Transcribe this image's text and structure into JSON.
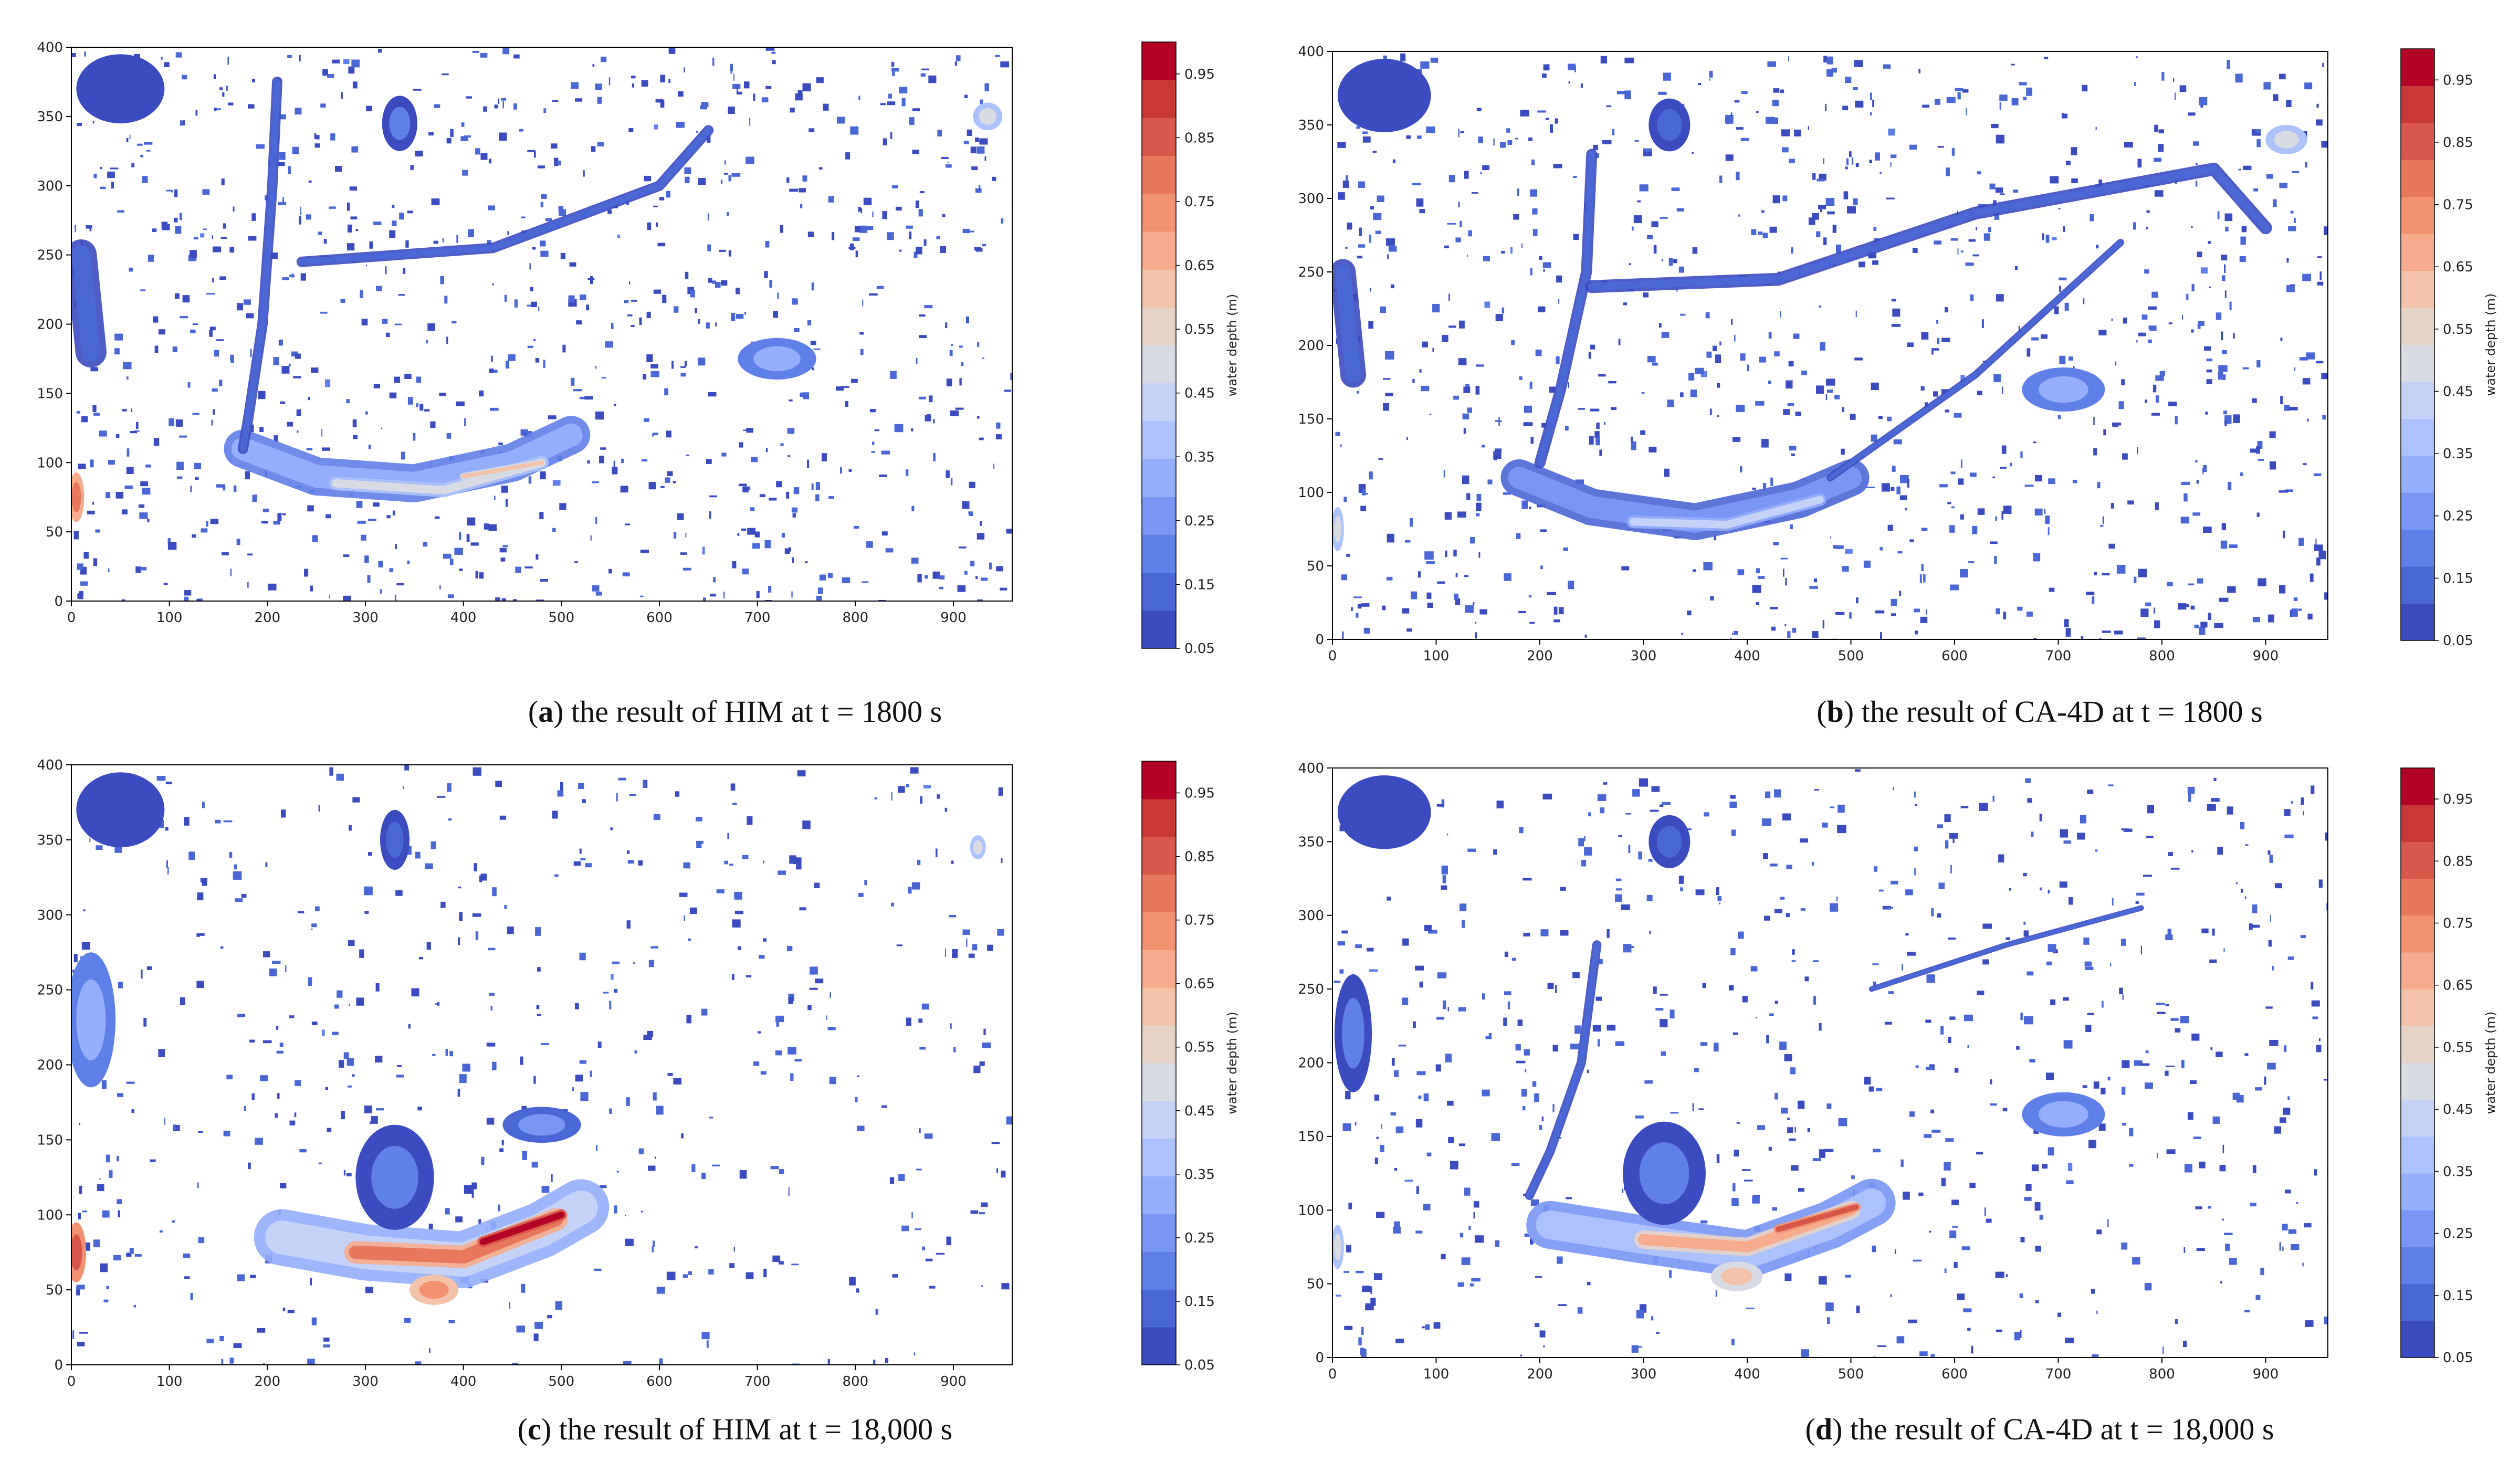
{
  "colorbar_label": "water depth (m)",
  "colorbar_ticks": [
    "0.05",
    "0.15",
    "0.25",
    "0.35",
    "0.45",
    "0.55",
    "0.65",
    "0.75",
    "0.85",
    "0.95"
  ],
  "colormap": [
    "#3b4cc0",
    "#4a67d6",
    "#5f80e8",
    "#7897f4",
    "#93aefb",
    "#acc2fd",
    "#c4d2f7",
    "#d8dbe4",
    "#e7d3c6",
    "#f2c3a9",
    "#f6ac8c",
    "#f29273",
    "#e8775e",
    "#d9574a",
    "#c73837",
    "#b40426"
  ],
  "captions": [
    {
      "letter": "a",
      "text": "the result of HIM at t = 1800 s"
    },
    {
      "letter": "b",
      "text": "the result of CA-4D at t = 1800 s"
    },
    {
      "letter": "c",
      "text": "the result of HIM at t = 18,000 s"
    },
    {
      "letter": "d",
      "text": "the result of CA-4D at t = 18,000 s"
    }
  ],
  "chart_data": [
    {
      "type": "heatmap",
      "panel": "a",
      "x_ticks": [
        0,
        100,
        200,
        300,
        400,
        500,
        600,
        700,
        800,
        900
      ],
      "y_ticks": [
        0,
        50,
        100,
        150,
        200,
        250,
        300,
        350,
        400
      ],
      "xlim": [
        0,
        960
      ],
      "ylim": [
        0,
        400
      ],
      "clim": [
        0.05,
        1.0
      ],
      "features": [
        {
          "kind": "band",
          "pts": [
            [
              175,
              110
            ],
            [
              250,
              90
            ],
            [
              350,
              85
            ],
            [
              450,
              100
            ],
            [
              510,
              120
            ]
          ],
          "w": 22,
          "v": 0.3
        },
        {
          "kind": "band",
          "pts": [
            [
              270,
              85
            ],
            [
              380,
              80
            ],
            [
              480,
              100
            ]
          ],
          "w": 8,
          "v": 0.5
        },
        {
          "kind": "band",
          "pts": [
            [
              400,
              90
            ],
            [
              480,
              100
            ]
          ],
          "w": 4,
          "v": 0.6
        },
        {
          "kind": "band",
          "pts": [
            [
              210,
              375
            ],
            [
              205,
              300
            ],
            [
              195,
              200
            ],
            [
              180,
              130
            ],
            [
              175,
              110
            ]
          ],
          "w": 6,
          "v": 0.15
        },
        {
          "kind": "band",
          "pts": [
            [
              235,
              245
            ],
            [
              430,
              255
            ],
            [
              600,
              300
            ],
            [
              650,
              340
            ]
          ],
          "w": 6,
          "v": 0.15
        },
        {
          "kind": "blob",
          "c": [
            720,
            175
          ],
          "r": [
            40,
            15
          ],
          "v": 0.3
        },
        {
          "kind": "blob",
          "c": [
            5,
            75
          ],
          "r": [
            8,
            18
          ],
          "v": 0.8
        },
        {
          "kind": "blob",
          "c": [
            935,
            350
          ],
          "r": [
            15,
            10
          ],
          "v": 0.5
        },
        {
          "kind": "blob",
          "c": [
            50,
            370
          ],
          "r": [
            45,
            25
          ],
          "v": 0.1
        },
        {
          "kind": "blob",
          "c": [
            335,
            345
          ],
          "r": [
            18,
            20
          ],
          "v": 0.2
        },
        {
          "kind": "band",
          "pts": [
            [
              10,
              250
            ],
            [
              20,
              180
            ]
          ],
          "w": 18,
          "v": 0.15
        }
      ],
      "speckle_density": 1.0
    },
    {
      "type": "heatmap",
      "panel": "b",
      "x_ticks": [
        0,
        100,
        200,
        300,
        400,
        500,
        600,
        700,
        800,
        900
      ],
      "y_ticks": [
        0,
        50,
        100,
        150,
        200,
        250,
        300,
        350,
        400
      ],
      "xlim": [
        0,
        960
      ],
      "ylim": [
        0,
        400
      ],
      "clim": [
        0.05,
        1.0
      ],
      "features": [
        {
          "kind": "band",
          "pts": [
            [
              180,
              110
            ],
            [
              250,
              90
            ],
            [
              350,
              80
            ],
            [
              450,
              95
            ],
            [
              500,
              110
            ]
          ],
          "w": 20,
          "v": 0.25
        },
        {
          "kind": "band",
          "pts": [
            [
              290,
              80
            ],
            [
              380,
              78
            ],
            [
              470,
              95
            ]
          ],
          "w": 7,
          "v": 0.45
        },
        {
          "kind": "band",
          "pts": [
            [
              250,
              330
            ],
            [
              245,
              250
            ],
            [
              220,
              170
            ],
            [
              200,
              120
            ]
          ],
          "w": 6,
          "v": 0.15
        },
        {
          "kind": "band",
          "pts": [
            [
              250,
              240
            ],
            [
              430,
              245
            ],
            [
              620,
              290
            ],
            [
              850,
              320
            ],
            [
              900,
              280
            ]
          ],
          "w": 7,
          "v": 0.15
        },
        {
          "kind": "band",
          "pts": [
            [
              480,
              110
            ],
            [
              620,
              180
            ],
            [
              760,
              270
            ]
          ],
          "w": 4,
          "v": 0.15
        },
        {
          "kind": "blob",
          "c": [
            705,
            170
          ],
          "r": [
            40,
            15
          ],
          "v": 0.3
        },
        {
          "kind": "blob",
          "c": [
            5,
            75
          ],
          "r": [
            6,
            15
          ],
          "v": 0.5
        },
        {
          "kind": "blob",
          "c": [
            920,
            340
          ],
          "r": [
            20,
            10
          ],
          "v": 0.5
        },
        {
          "kind": "blob",
          "c": [
            50,
            370
          ],
          "r": [
            45,
            25
          ],
          "v": 0.1
        },
        {
          "kind": "blob",
          "c": [
            325,
            350
          ],
          "r": [
            20,
            18
          ],
          "v": 0.15
        },
        {
          "kind": "band",
          "pts": [
            [
              10,
              250
            ],
            [
              20,
              180
            ]
          ],
          "w": 14,
          "v": 0.15
        }
      ],
      "speckle_density": 1.0
    },
    {
      "type": "heatmap",
      "panel": "c",
      "x_ticks": [
        0,
        100,
        200,
        300,
        400,
        500,
        600,
        700,
        800,
        900
      ],
      "y_ticks": [
        0,
        50,
        100,
        150,
        200,
        250,
        300,
        350,
        400
      ],
      "xlim": [
        0,
        960
      ],
      "ylim": [
        0,
        400
      ],
      "clim": [
        0.05,
        1.0
      ],
      "features": [
        {
          "kind": "band",
          "pts": [
            [
              215,
              85
            ],
            [
              300,
              75
            ],
            [
              400,
              70
            ],
            [
              480,
              90
            ],
            [
              520,
              105
            ]
          ],
          "w": 30,
          "v": 0.45
        },
        {
          "kind": "band",
          "pts": [
            [
              290,
              75
            ],
            [
              400,
              72
            ],
            [
              495,
              97
            ]
          ],
          "w": 12,
          "v": 0.8
        },
        {
          "kind": "band",
          "pts": [
            [
              420,
              82
            ],
            [
              500,
              100
            ]
          ],
          "w": 6,
          "v": 0.95
        },
        {
          "kind": "blob",
          "c": [
            330,
            125
          ],
          "r": [
            40,
            35
          ],
          "v": 0.2
        },
        {
          "kind": "blob",
          "c": [
            370,
            50
          ],
          "r": [
            25,
            10
          ],
          "v": 0.75
        },
        {
          "kind": "blob",
          "c": [
            5,
            75
          ],
          "r": [
            10,
            20
          ],
          "v": 0.85
        },
        {
          "kind": "blob",
          "c": [
            480,
            160
          ],
          "r": [
            40,
            12
          ],
          "v": 0.25
        },
        {
          "kind": "blob",
          "c": [
            20,
            230
          ],
          "r": [
            25,
            45
          ],
          "v": 0.3
        },
        {
          "kind": "blob",
          "c": [
            50,
            370
          ],
          "r": [
            45,
            25
          ],
          "v": 0.1
        },
        {
          "kind": "blob",
          "c": [
            330,
            350
          ],
          "r": [
            15,
            20
          ],
          "v": 0.15
        },
        {
          "kind": "blob",
          "c": [
            925,
            345
          ],
          "r": [
            8,
            8
          ],
          "v": 0.5
        }
      ],
      "speckle_density": 0.55
    },
    {
      "type": "heatmap",
      "panel": "d",
      "x_ticks": [
        0,
        100,
        200,
        300,
        400,
        500,
        600,
        700,
        800,
        900
      ],
      "y_ticks": [
        0,
        50,
        100,
        150,
        200,
        250,
        300,
        350,
        400
      ],
      "xlim": [
        0,
        960
      ],
      "ylim": [
        0,
        400
      ],
      "clim": [
        0.05,
        1.0
      ],
      "features": [
        {
          "kind": "band",
          "pts": [
            [
              210,
              90
            ],
            [
              300,
              80
            ],
            [
              400,
              70
            ],
            [
              480,
              90
            ],
            [
              520,
              105
            ]
          ],
          "w": 26,
          "v": 0.4
        },
        {
          "kind": "band",
          "pts": [
            [
              300,
              80
            ],
            [
              400,
              75
            ],
            [
              500,
              100
            ]
          ],
          "w": 10,
          "v": 0.7
        },
        {
          "kind": "band",
          "pts": [
            [
              430,
              87
            ],
            [
              505,
              102
            ]
          ],
          "w": 5,
          "v": 0.85
        },
        {
          "kind": "blob",
          "c": [
            320,
            125
          ],
          "r": [
            40,
            35
          ],
          "v": 0.2
        },
        {
          "kind": "blob",
          "c": [
            390,
            55
          ],
          "r": [
            25,
            10
          ],
          "v": 0.6
        },
        {
          "kind": "band",
          "pts": [
            [
              255,
              280
            ],
            [
              240,
              200
            ],
            [
              210,
              140
            ],
            [
              190,
              110
            ]
          ],
          "w": 5,
          "v": 0.15
        },
        {
          "kind": "band",
          "pts": [
            [
              520,
              250
            ],
            [
              650,
              280
            ],
            [
              780,
              305
            ]
          ],
          "w": 3,
          "v": 0.15
        },
        {
          "kind": "blob",
          "c": [
            705,
            165
          ],
          "r": [
            40,
            15
          ],
          "v": 0.3
        },
        {
          "kind": "blob",
          "c": [
            5,
            75
          ],
          "r": [
            6,
            15
          ],
          "v": 0.5
        },
        {
          "kind": "blob",
          "c": [
            20,
            220
          ],
          "r": [
            18,
            40
          ],
          "v": 0.2
        },
        {
          "kind": "blob",
          "c": [
            50,
            370
          ],
          "r": [
            45,
            25
          ],
          "v": 0.1
        },
        {
          "kind": "blob",
          "c": [
            325,
            350
          ],
          "r": [
            20,
            18
          ],
          "v": 0.15
        }
      ],
      "speckle_density": 0.7
    }
  ]
}
